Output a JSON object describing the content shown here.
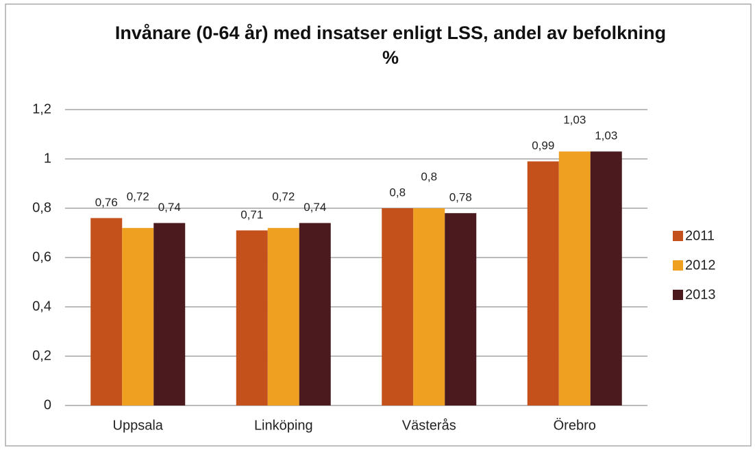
{
  "chart_data": {
    "type": "bar",
    "title": "Invånare (0-64 år) med insatser enligt LSS, andel av befolkning %",
    "categories": [
      "Uppsala",
      "Linköping",
      "Västerås",
      "Örebro"
    ],
    "series": [
      {
        "name": "2011",
        "color": "#c4501c",
        "values": [
          0.76,
          0.71,
          0.8,
          0.99
        ],
        "value_labels": [
          "0,76",
          "0,71",
          "0,8",
          "0,99"
        ]
      },
      {
        "name": "2012",
        "color": "#f0a020",
        "values": [
          0.72,
          0.72,
          0.8,
          1.03
        ],
        "value_labels": [
          "0,72",
          "0,72",
          "0,8",
          "1,03"
        ]
      },
      {
        "name": "2013",
        "color": "#4a1a1e",
        "values": [
          0.74,
          0.74,
          0.78,
          1.03
        ],
        "value_labels": [
          "0,74",
          "0,74",
          "0,78",
          "1,03"
        ]
      }
    ],
    "ylim": [
      0,
      1.2
    ],
    "yticks": [
      0,
      {
        "value": 0.2,
        "label": "0,2"
      },
      {
        "value": 0.4,
        "label": "0,4"
      },
      {
        "value": 0.6,
        "label": "0,6"
      },
      {
        "value": 0.8,
        "label": "0,8"
      },
      1,
      {
        "value": 1.2,
        "label": "1,2"
      }
    ],
    "grid": true,
    "legend": "right"
  }
}
